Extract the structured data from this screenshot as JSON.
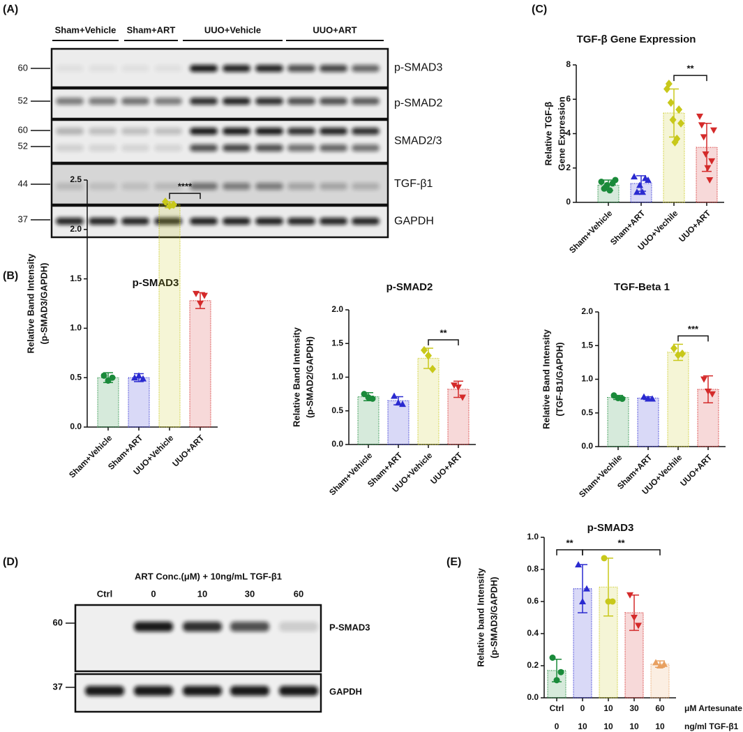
{
  "panel_labels": [
    "(A)",
    "(B)",
    "(C)",
    "(D)",
    "(E)"
  ],
  "blot_a": {
    "groups": [
      "Sham+Vehicle",
      "Sham+ART",
      "UUO+Vehicle",
      "UUO+ART"
    ],
    "rows": [
      {
        "markers": [
          60
        ],
        "label": "p-SMAD3"
      },
      {
        "markers": [
          52
        ],
        "label": "p-SMAD2"
      },
      {
        "markers": [
          60,
          52
        ],
        "label": "SMAD2/3"
      },
      {
        "markers": [
          44
        ],
        "label": "TGF-β1"
      },
      {
        "markers": [
          37
        ],
        "label": "GAPDH"
      }
    ]
  },
  "blot_d": {
    "header": "ART Conc.(μM) + 10ng/mL TGF-β1",
    "lanes": [
      "Ctrl",
      "0",
      "10",
      "30",
      "60"
    ],
    "rows": [
      {
        "marker": 60,
        "label": "P-SMAD3"
      },
      {
        "marker": 37,
        "label": "GAPDH"
      }
    ]
  },
  "chart_data": [
    {
      "type": "bar",
      "title": "p-SMAD3",
      "ylabel": [
        "Relative Band Intensity",
        "(p-SMAD3/GAPDH)"
      ],
      "categories": [
        "Sham+Vehicle",
        "Sham+ART",
        "UUO+Vehicle",
        "UUO+ART"
      ],
      "values": [
        0.5,
        0.5,
        2.25,
        1.28
      ],
      "errors": [
        0.05,
        0.04,
        0.03,
        0.08
      ],
      "points": [
        [
          0.52,
          0.47,
          0.5
        ],
        [
          0.5,
          0.52,
          0.49
        ],
        [
          2.28,
          2.24,
          2.25
        ],
        [
          1.35,
          1.25,
          1.33
        ]
      ],
      "colors": [
        "#1a8a3a",
        "#2a2ad0",
        "#c8c81a",
        "#d42a2a"
      ],
      "markers": [
        "circle",
        "triangle",
        "diamond",
        "triangle-down"
      ],
      "ylim": [
        0,
        2.5
      ],
      "yticks": [
        {
          "value": 0,
          "label": "0.0"
        },
        0.5,
        {
          "value": 1,
          "label": "1.0"
        },
        1.5,
        {
          "value": 2,
          "label": "2.0"
        },
        2.5
      ],
      "significance": [
        {
          "between": [
            2,
            3
          ],
          "label": "****"
        }
      ]
    },
    {
      "type": "bar",
      "title": "p-SMAD2",
      "ylabel": [
        "Relative Band Intensity",
        "(p-SMAD2/GAPDH)"
      ],
      "categories": [
        "Sham+Vehicle",
        "Sham+ART",
        "UUO+Vehicle",
        "UUO+ART"
      ],
      "values": [
        0.71,
        0.65,
        1.28,
        0.82
      ],
      "errors": [
        0.06,
        0.06,
        0.15,
        0.12
      ],
      "points": [
        [
          0.75,
          0.7,
          0.68
        ],
        [
          0.72,
          0.62,
          0.6
        ],
        [
          1.4,
          1.32,
          1.12
        ],
        [
          0.88,
          0.85,
          0.7
        ]
      ],
      "colors": [
        "#1a8a3a",
        "#2a2ad0",
        "#c8c81a",
        "#d42a2a"
      ],
      "markers": [
        "circle",
        "triangle",
        "diamond",
        "triangle-down"
      ],
      "ylim": [
        0,
        2
      ],
      "yticks": [
        {
          "value": 0,
          "label": "0.0"
        },
        0.5,
        {
          "value": 1,
          "label": "1.0"
        },
        1.5,
        {
          "value": 2,
          "label": "2.0"
        }
      ],
      "significance": [
        {
          "between": [
            2,
            3
          ],
          "label": "**"
        }
      ]
    },
    {
      "type": "bar",
      "title": "TGF-Beta 1",
      "ylabel": [
        "Relative Band Intensity",
        "(TGF-B1/GAPDH)"
      ],
      "categories": [
        "Sham+Vechile",
        "Sham+ART",
        "UUO+Vechile",
        "UUO+ART"
      ],
      "values": [
        0.73,
        0.72,
        1.4,
        0.85
      ],
      "errors": [
        0.03,
        0.02,
        0.12,
        0.2
      ],
      "points": [
        [
          0.76,
          0.72,
          0.71
        ],
        [
          0.74,
          0.71,
          0.71
        ],
        [
          1.46,
          1.36,
          1.38
        ],
        [
          1.0,
          0.82,
          0.78
        ]
      ],
      "colors": [
        "#1a8a3a",
        "#2a2ad0",
        "#c8c81a",
        "#d42a2a"
      ],
      "markers": [
        "circle",
        "triangle",
        "diamond",
        "triangle-down"
      ],
      "ylim": [
        0,
        2
      ],
      "yticks": [
        {
          "value": 0,
          "label": "0.0"
        },
        0.5,
        {
          "value": 1,
          "label": "1.0"
        },
        1.5,
        {
          "value": 2,
          "label": "2.0"
        }
      ],
      "significance": [
        {
          "between": [
            2,
            3
          ],
          "label": "***"
        }
      ]
    },
    {
      "type": "bar",
      "title": "TGF-β Gene Expression",
      "ylabel": [
        "Relative TGF-β",
        "Gene Expression"
      ],
      "categories": [
        "Sham+Vehicle",
        "Sham+ART",
        "UUO+Vechile",
        "UUO+ART"
      ],
      "values": [
        1.0,
        1.1,
        5.2,
        3.2
      ],
      "errors": [
        0.3,
        0.45,
        1.4,
        1.4
      ],
      "points": [
        [
          1.2,
          0.8,
          1.0,
          0.7,
          1.1,
          1.3
        ],
        [
          1.5,
          0.6,
          1.0,
          0.6,
          1.4,
          1.3
        ],
        [
          6.6,
          6.9,
          5.8,
          4.8,
          3.5,
          3.7,
          5.4,
          4.6
        ],
        [
          5.0,
          4.5,
          3.8,
          2.8,
          2.0,
          1.3,
          2.4,
          4.2
        ]
      ],
      "colors": [
        "#1a8a3a",
        "#2a2ad0",
        "#c8c81a",
        "#d42a2a"
      ],
      "markers": [
        "circle",
        "triangle",
        "diamond",
        "triangle-down"
      ],
      "ylim": [
        0,
        8
      ],
      "yticks": [
        0,
        2,
        4,
        6,
        8
      ],
      "significance": [
        {
          "between": [
            2,
            3
          ],
          "label": "**"
        }
      ]
    },
    {
      "type": "bar",
      "title": "p-SMAD3",
      "ylabel": [
        "Relative band Intensity",
        "(p-SMAD3/GAPDH)"
      ],
      "categories": [
        "Ctrl",
        "0",
        "10",
        "30",
        "60"
      ],
      "categories2": [
        "0",
        "10",
        "10",
        "10",
        "10"
      ],
      "row_labels": [
        "μM Artesunate",
        "ng/ml TGF-β1"
      ],
      "values": [
        0.17,
        0.68,
        0.69,
        0.53,
        0.21
      ],
      "errors": [
        0.07,
        0.15,
        0.18,
        0.11,
        0.02
      ],
      "points": [
        [
          0.25,
          0.11,
          0.16
        ],
        [
          0.83,
          0.6,
          0.68
        ],
        [
          0.87,
          0.6,
          0.6
        ],
        [
          0.64,
          0.5,
          0.45
        ],
        [
          0.22,
          0.2,
          0.21
        ]
      ],
      "colors": [
        "#1a8a3a",
        "#2a2ad0",
        "#c8c81a",
        "#d42a2a",
        "#e8a060"
      ],
      "markers": [
        "circle",
        "triangle",
        "circle",
        "triangle-down",
        "triangle"
      ],
      "ylim": [
        0,
        1
      ],
      "yticks": [
        {
          "value": 0,
          "label": "0.0"
        },
        0.2,
        0.4,
        0.6,
        0.8,
        {
          "value": 1,
          "label": "1.0"
        }
      ],
      "significance": [
        {
          "between": [
            0,
            1
          ],
          "label": "**"
        },
        {
          "between": [
            1,
            4
          ],
          "label": "**"
        }
      ]
    }
  ]
}
